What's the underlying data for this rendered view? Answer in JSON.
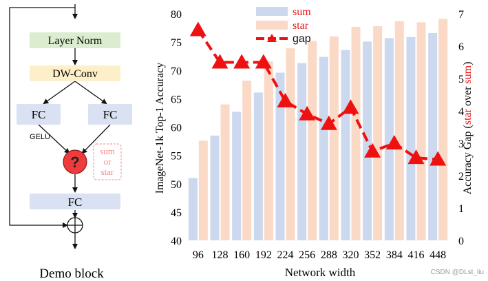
{
  "demo_block": {
    "caption": "Demo block",
    "layer_norm": "Layer Norm",
    "dwconv": "DW-Conv",
    "fc_left": "FC",
    "fc_right": "FC",
    "gelu": "GELU",
    "op_symbol": "?",
    "op_options": [
      "sum",
      "or",
      "star"
    ],
    "fc_bottom": "FC",
    "colors": {
      "layer_norm_fill": "#dbeccf",
      "dwconv_fill": "#fdf0c8",
      "fc_fill": "#d9e1f2",
      "op_circle": "#ee3b3b",
      "op_options_text": "#f08a8a"
    }
  },
  "chart_data": {
    "type": "bar",
    "categories": [
      "96",
      "128",
      "160",
      "192",
      "224",
      "256",
      "288",
      "320",
      "352",
      "384",
      "416",
      "448"
    ],
    "xlabel": "Network width",
    "ylabel": "ImageNet-1k Top-1 Accuracy",
    "ylim": [
      40,
      80
    ],
    "yticks": [
      40,
      45,
      50,
      55,
      60,
      65,
      70,
      75,
      80
    ],
    "y2label_parts": [
      "Accuracy Gap (",
      "star",
      " over ",
      "sum",
      ")"
    ],
    "y2lim": [
      0,
      7
    ],
    "y2ticks": [
      0,
      1,
      2,
      3,
      4,
      5,
      6,
      7
    ],
    "series": [
      {
        "name": "sum",
        "kind": "bar",
        "axis": "left",
        "color": "#ccd8ee",
        "values": [
          51.0,
          58.5,
          62.7,
          66.1,
          69.6,
          71.3,
          72.4,
          73.6,
          75.1,
          75.7,
          75.9,
          76.6
        ]
      },
      {
        "name": "star",
        "kind": "bar",
        "axis": "left",
        "color": "#fbd9c7",
        "values": [
          57.6,
          64.0,
          68.2,
          71.6,
          73.9,
          75.2,
          76.0,
          77.7,
          77.8,
          78.7,
          78.5,
          79.1
        ]
      },
      {
        "name": "gap",
        "kind": "line",
        "axis": "right",
        "color": "#ee1111",
        "values": [
          6.5,
          5.5,
          5.5,
          5.5,
          4.3,
          3.9,
          3.6,
          4.1,
          2.75,
          3.0,
          2.55,
          2.5
        ]
      }
    ],
    "legend_position": "top-center",
    "legend_text_colors": {
      "sum": "#ee1111",
      "star": "#ee1111",
      "gap": "#111111"
    }
  },
  "watermark": "CSDN @DLst_liu"
}
